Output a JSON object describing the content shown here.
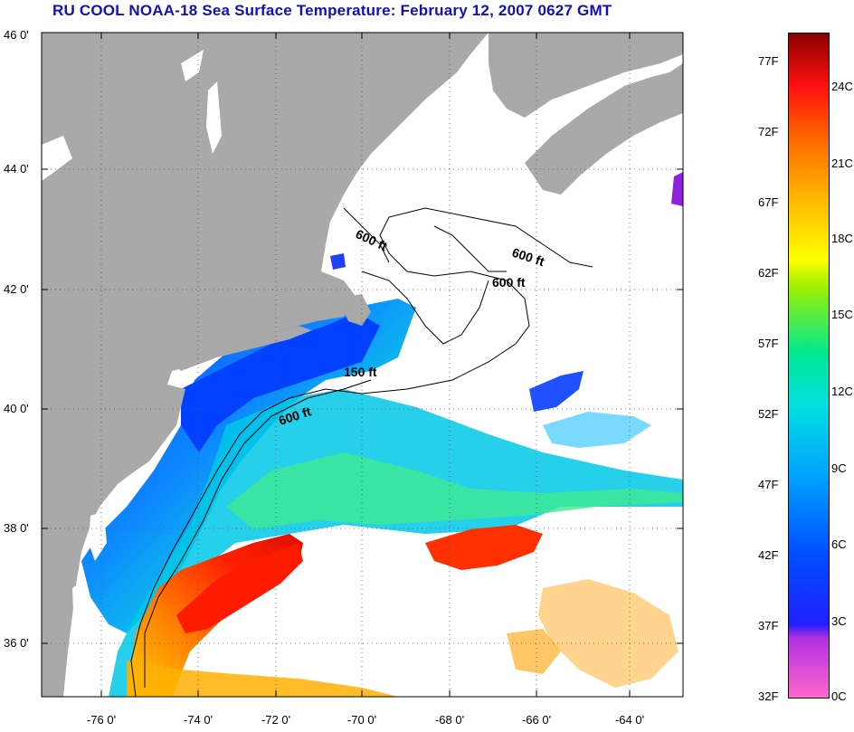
{
  "title": "RU COOL  NOAA-18  Sea Surface Temperature:  February 12, 2007 0627 GMT",
  "latitude_labels": [
    "46 0'",
    "44 0'",
    "42 0'",
    "40 0'",
    "38 0'",
    "36 0'"
  ],
  "longitude_labels": [
    "-76 0'",
    "-74 0'",
    "-72 0'",
    "-70 0'",
    "-68 0'",
    "-66 0'",
    "-64 0'"
  ],
  "contour_labels": [
    "600 ft",
    "600 ft",
    "600 ft",
    "150 ft",
    "600 ft"
  ],
  "colorbar": {
    "fahrenheit": [
      "77F",
      "72F",
      "67F",
      "62F",
      "57F",
      "52F",
      "47F",
      "42F",
      "37F",
      "32F"
    ],
    "celsius": [
      "24C",
      "21C",
      "18C",
      "15C",
      "12C",
      "9C",
      "6C",
      "3C",
      "0C"
    ]
  },
  "colors": {
    "land": "#a9a9a9",
    "title": "#1010c0",
    "cold": "#0030ff",
    "warm": "#ff2000"
  }
}
